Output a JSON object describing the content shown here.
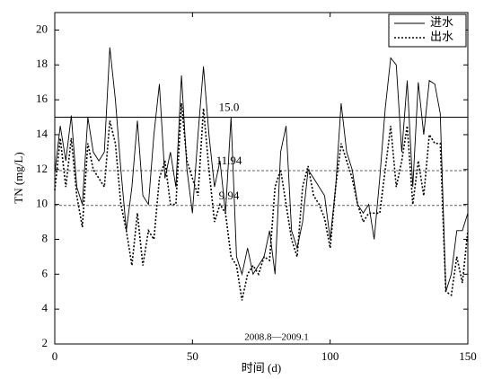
{
  "chart_data": {
    "type": "line",
    "xlabel": "时间 (d)",
    "ylabel": "TN (mg/L)",
    "annotation": "2008.8—2009.1",
    "xlim": [
      0,
      150
    ],
    "xticks": [
      0,
      50,
      100,
      150
    ],
    "ylim": [
      2,
      21
    ],
    "yticks": [
      2,
      4,
      6,
      8,
      10,
      12,
      14,
      16,
      18,
      20
    ],
    "legend": "upper right",
    "reference_lines": [
      {
        "value": 15,
        "label": "15.0",
        "style": "solid"
      },
      {
        "value": 11.94,
        "label": "11.94",
        "style": "dashed"
      },
      {
        "value": 9.94,
        "label": "9.94",
        "style": "dashed"
      }
    ],
    "x": [
      0,
      2,
      4,
      6,
      8,
      10,
      12,
      14,
      16,
      18,
      20,
      22,
      24,
      26,
      28,
      30,
      32,
      34,
      36,
      38,
      40,
      42,
      44,
      46,
      48,
      50,
      52,
      54,
      56,
      58,
      60,
      62,
      64,
      66,
      68,
      70,
      72,
      74,
      76,
      78,
      80,
      82,
      84,
      86,
      88,
      90,
      92,
      94,
      96,
      98,
      100,
      102,
      104,
      106,
      108,
      110,
      112,
      114,
      116,
      118,
      120,
      122,
      124,
      126,
      128,
      130,
      132,
      134,
      136,
      138,
      140,
      142,
      144,
      146,
      148,
      150
    ],
    "series": [
      {
        "name": "进水",
        "color": "#000000",
        "style": "solid",
        "values": [
          11.8,
          14.5,
          12.5,
          15.1,
          11,
          10,
          15,
          13,
          12.5,
          13,
          19,
          16,
          12,
          8.5,
          11,
          14.8,
          10.5,
          10,
          14,
          16.9,
          11.5,
          13,
          11,
          17.4,
          12,
          9.5,
          14,
          17.9,
          14,
          11,
          12.5,
          9.5,
          15,
          7,
          6,
          7.5,
          6,
          6.5,
          7,
          8.5,
          6,
          13,
          14.5,
          8.5,
          7.5,
          9,
          12,
          11.5,
          11,
          10.5,
          8,
          11,
          15.8,
          13,
          12,
          10,
          9.5,
          10,
          8,
          11.5,
          15.5,
          18.4,
          18,
          13,
          17.1,
          11,
          17,
          14,
          17.1,
          16.9,
          15.2,
          5,
          6,
          8.5,
          8.5,
          9.5
        ]
      },
      {
        "name": "出水",
        "color": "#000000",
        "style": "dotted",
        "values": [
          10.8,
          13.8,
          11,
          13.8,
          10.5,
          8.7,
          13.5,
          12,
          11.5,
          11,
          14.8,
          13.5,
          10,
          8.5,
          6.5,
          9.5,
          6.5,
          8.5,
          8,
          11.5,
          12.5,
          10,
          10,
          15.8,
          12.5,
          11.5,
          10.5,
          15.5,
          12,
          9,
          10,
          9.5,
          7,
          6.5,
          4.5,
          6,
          6.5,
          6,
          7,
          6.8,
          11,
          12,
          10,
          8,
          7,
          11,
          12.2,
          10.5,
          10,
          9.2,
          7.5,
          11,
          13.5,
          12.5,
          11.5,
          10,
          9,
          9.5,
          9.5,
          9.5,
          12,
          14.5,
          11,
          12.5,
          14.5,
          10,
          12.5,
          10.5,
          14,
          13.5,
          13.5,
          5,
          4.8,
          7,
          5.5,
          8.5
        ]
      }
    ]
  }
}
